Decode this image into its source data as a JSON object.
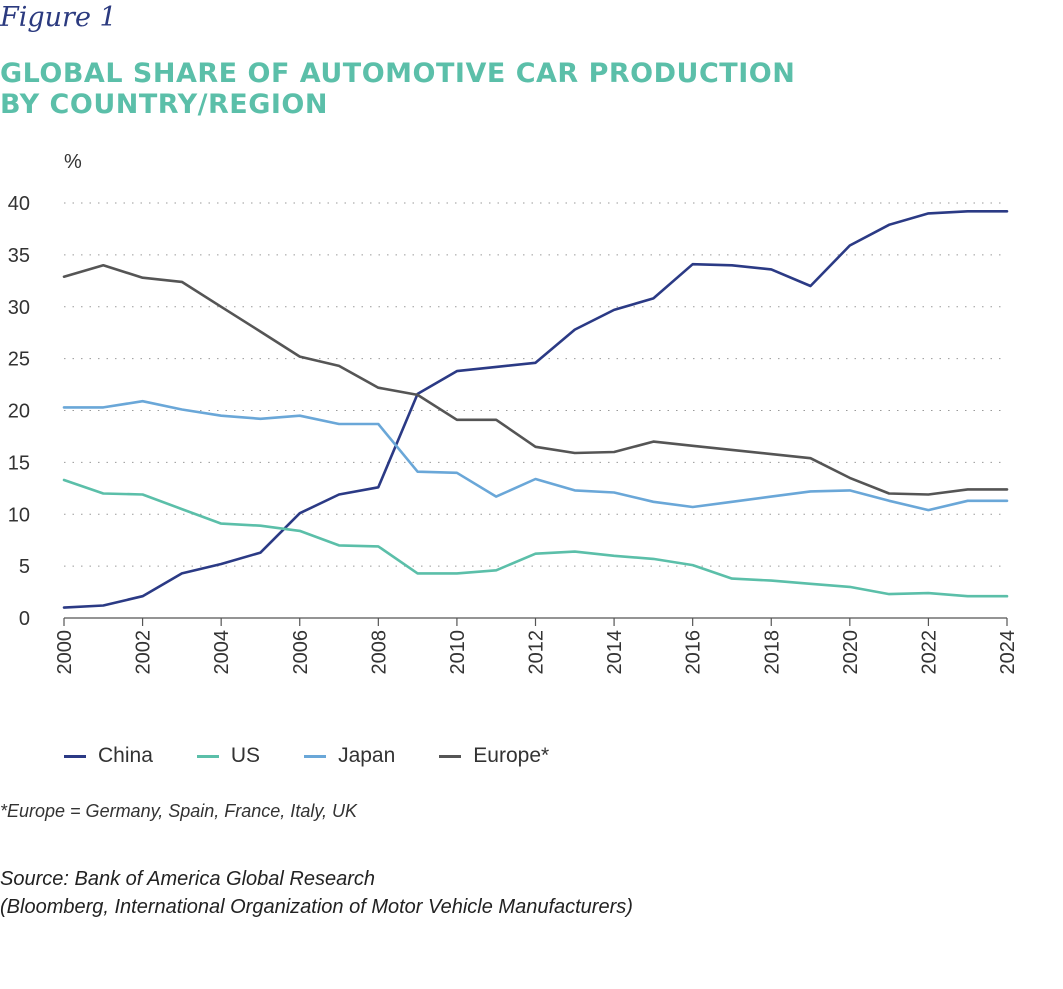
{
  "figure_label": "Figure 1",
  "title_lines": [
    "GLOBAL SHARE OF AUTOMOTIVE CAR PRODUCTION",
    "BY COUNTRY/REGION"
  ],
  "footnote": "*Europe = Germany, Spain, France, Italy, UK",
  "source_lines": [
    "Source: Bank of America Global Research",
    "(Bloomberg, International Organization of Motor Vehicle Manufacturers)"
  ],
  "chart_data": {
    "type": "line",
    "title": "GLOBAL SHARE OF AUTOMOTIVE CAR PRODUCTION BY COUNTRY/REGION",
    "xlabel": "",
    "ylabel": "%",
    "ylim": [
      0,
      40
    ],
    "yticks": [
      0,
      5,
      10,
      15,
      20,
      25,
      30,
      35,
      40
    ],
    "xlim": [
      2000,
      2024
    ],
    "xticks": [
      2000,
      2002,
      2004,
      2006,
      2008,
      2010,
      2012,
      2014,
      2016,
      2018,
      2020,
      2022,
      2024
    ],
    "grid": true,
    "legend_position": "bottom",
    "series": [
      {
        "name": "China",
        "color": "#2b3a85",
        "x": [
          2000,
          2001,
          2002,
          2003,
          2004,
          2005,
          2006,
          2007,
          2008,
          2009,
          2010,
          2011,
          2012,
          2013,
          2014,
          2015,
          2016,
          2017,
          2018,
          2019,
          2020,
          2021,
          2022,
          2023,
          2024
        ],
        "values": [
          1.0,
          1.2,
          2.1,
          4.3,
          5.2,
          6.3,
          10.1,
          11.9,
          12.6,
          21.6,
          23.8,
          24.2,
          24.6,
          27.8,
          29.7,
          30.8,
          34.1,
          34.0,
          33.6,
          32.0,
          35.9,
          37.9,
          39.0,
          39.2,
          39.2
        ]
      },
      {
        "name": "US",
        "color": "#5bbfa9",
        "x": [
          2000,
          2001,
          2002,
          2003,
          2004,
          2005,
          2006,
          2007,
          2008,
          2009,
          2010,
          2011,
          2012,
          2013,
          2014,
          2015,
          2016,
          2017,
          2018,
          2019,
          2020,
          2021,
          2022,
          2023,
          2024
        ],
        "values": [
          13.3,
          12.0,
          11.9,
          10.5,
          9.1,
          8.9,
          8.4,
          7.0,
          6.9,
          4.3,
          4.3,
          4.6,
          6.2,
          6.4,
          6.0,
          5.7,
          5.1,
          3.8,
          3.6,
          3.3,
          3.0,
          2.3,
          2.4,
          2.1,
          2.1
        ]
      },
      {
        "name": "Japan",
        "color": "#6aa7d8",
        "x": [
          2000,
          2001,
          2002,
          2003,
          2004,
          2005,
          2006,
          2007,
          2008,
          2009,
          2010,
          2011,
          2012,
          2013,
          2014,
          2015,
          2016,
          2017,
          2018,
          2019,
          2020,
          2021,
          2022,
          2023,
          2024
        ],
        "values": [
          20.3,
          20.3,
          20.9,
          20.1,
          19.5,
          19.2,
          19.5,
          18.7,
          18.7,
          14.1,
          14.0,
          11.7,
          13.4,
          12.3,
          12.1,
          11.2,
          10.7,
          11.2,
          11.7,
          12.2,
          12.3,
          11.3,
          10.4,
          11.3,
          11.3
        ]
      },
      {
        "name": "Europe*",
        "color": "#555555",
        "x": [
          2000,
          2001,
          2002,
          2003,
          2004,
          2005,
          2006,
          2007,
          2008,
          2009,
          2010,
          2011,
          2012,
          2013,
          2014,
          2015,
          2016,
          2017,
          2018,
          2019,
          2020,
          2021,
          2022,
          2023,
          2024
        ],
        "values": [
          32.9,
          34.0,
          32.8,
          32.4,
          30.0,
          27.6,
          25.2,
          24.3,
          22.2,
          21.5,
          19.1,
          19.1,
          16.5,
          15.9,
          16.0,
          17.0,
          16.6,
          16.2,
          15.8,
          15.4,
          13.5,
          12.0,
          11.9,
          12.4,
          12.4
        ]
      }
    ]
  }
}
